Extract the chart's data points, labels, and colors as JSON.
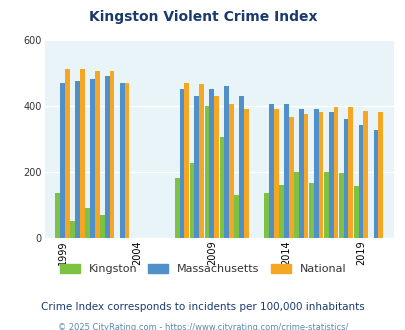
{
  "title": "Kingston Violent Crime Index",
  "subtitle": "Crime Index corresponds to incidents per 100,000 inhabitants",
  "footer": "© 2025 CityRating.com - https://www.cityrating.com/crime-statistics/",
  "years": [
    1999,
    2000,
    2001,
    2002,
    2003,
    2007,
    2008,
    2009,
    2010,
    2011,
    2013,
    2014,
    2015,
    2016,
    2017,
    2018,
    2019,
    2020
  ],
  "kingston": [
    135,
    50,
    90,
    70,
    0,
    180,
    225,
    400,
    305,
    130,
    135,
    160,
    200,
    165,
    200,
    195,
    155,
    0
  ],
  "massachusetts": [
    470,
    475,
    480,
    490,
    470,
    450,
    430,
    450,
    460,
    430,
    405,
    405,
    390,
    390,
    380,
    360,
    340,
    325
  ],
  "national": [
    510,
    510,
    505,
    505,
    470,
    470,
    465,
    430,
    405,
    390,
    390,
    365,
    375,
    380,
    395,
    395,
    385,
    380
  ],
  "xtick_years": [
    1999,
    2004,
    2009,
    2014,
    2019
  ],
  "ylim": [
    0,
    600
  ],
  "yticks": [
    0,
    200,
    400,
    600
  ],
  "bar_width": 0.32,
  "colors": {
    "kingston": "#7dc242",
    "massachusetts": "#4f8fca",
    "national": "#f5a623",
    "background": "#e8f4f7",
    "title": "#1a3a6e",
    "subtitle": "#1a3a6e",
    "footer": "#5a8aaa",
    "grid": "#ffffff"
  },
  "figsize": [
    4.06,
    3.3
  ],
  "dpi": 100
}
